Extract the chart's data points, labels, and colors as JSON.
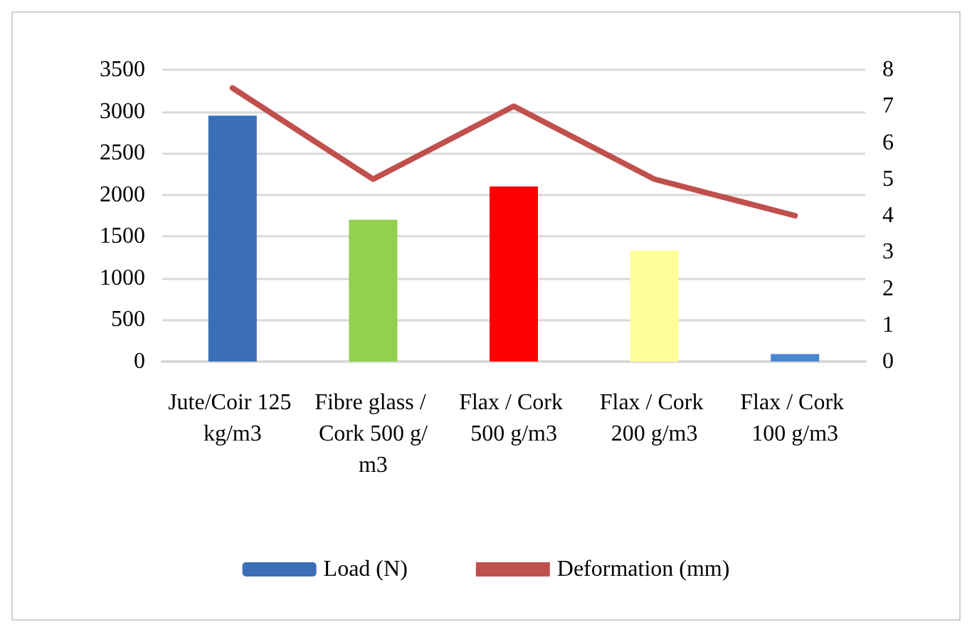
{
  "chart_data": {
    "type": "bar",
    "categories": [
      "Jute/Coir 125 kg/m3",
      "Fibre glass / Cork 500 g/m3",
      "Flax / Cork 500 g/m3",
      "Flax / Cork 200 g/m3",
      "Flax / Cork 100 g/m3"
    ],
    "series": [
      {
        "name": "Load (N)",
        "color": "#3a6fb8",
        "colors": [
          "#3a6fb8",
          "#92d050",
          "#ff0000",
          "#ffff99",
          "#4a86d0"
        ],
        "values": [
          2950,
          1700,
          2100,
          1330,
          90
        ]
      },
      {
        "name": "Deformation (mm)",
        "type": "line",
        "axis": "y2",
        "color": "#c0504d",
        "values": [
          7.5,
          5,
          7,
          5,
          4
        ]
      }
    ],
    "ylim": [
      0,
      3500
    ],
    "yticks": [
      0,
      500,
      1000,
      1500,
      2000,
      2500,
      3000,
      3500
    ],
    "y2lim": [
      0,
      8
    ],
    "y2ticks": [
      0,
      1,
      2,
      3,
      4,
      5,
      6,
      7,
      8
    ],
    "grid": "y",
    "legend": "bottom",
    "marker": "none"
  }
}
